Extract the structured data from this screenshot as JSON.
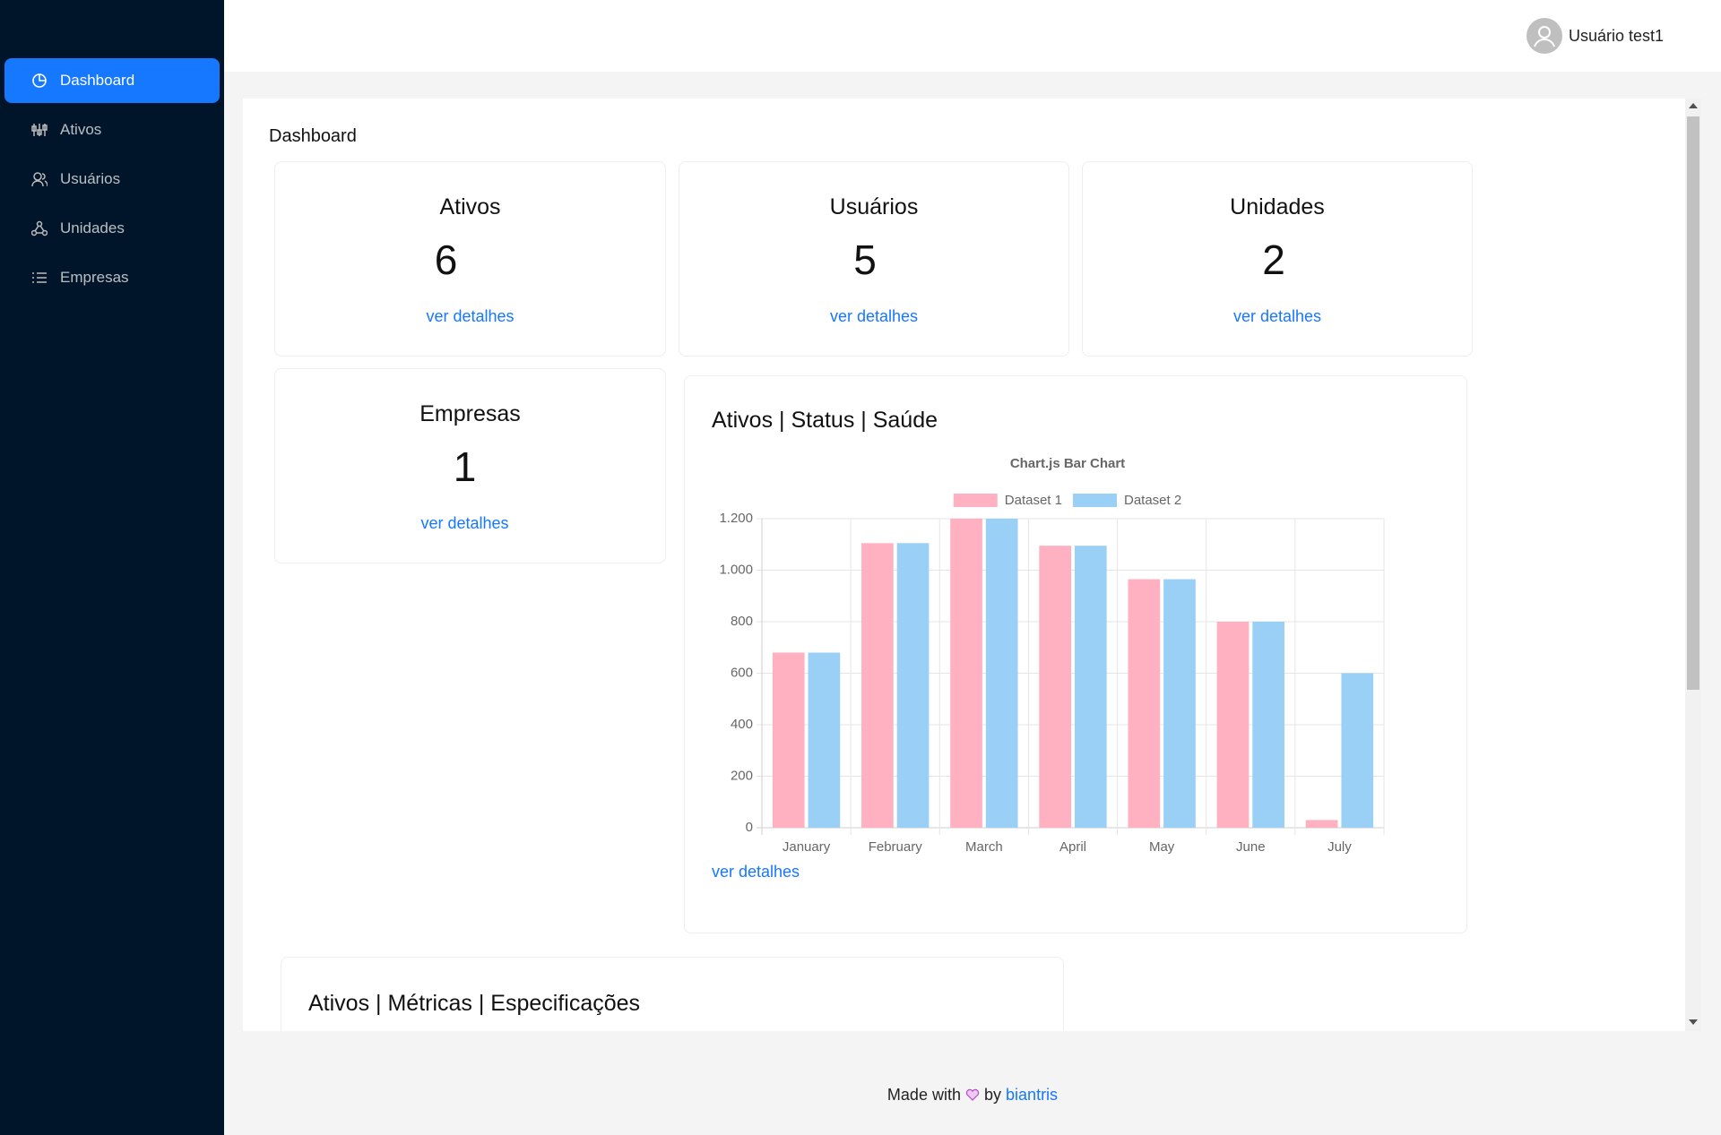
{
  "sidebar": {
    "items": [
      "Dashboard",
      "Ativos",
      "Usuários",
      "Unidades",
      "Empresas"
    ]
  },
  "header": {
    "user": "Usuário test1"
  },
  "page_title": "Dashboard",
  "cards": [
    {
      "title": "Ativos",
      "count": 6,
      "link": "ver detalhes"
    },
    {
      "title": "Usuários",
      "count": 5,
      "link": "ver detalhes"
    },
    {
      "title": "Unidades",
      "count": 2,
      "link": "ver detalhes"
    },
    {
      "title": "Empresas",
      "count": 1,
      "link": "ver detalhes"
    }
  ],
  "chart_card": {
    "title": "Ativos | Status | Saúde",
    "link": "ver detalhes"
  },
  "chart_data": {
    "type": "bar",
    "title": "Chart.js Bar Chart",
    "categories": [
      "January",
      "February",
      "March",
      "April",
      "May",
      "June",
      "July"
    ],
    "series": [
      {
        "name": "Dataset 1",
        "color": "#ffb1c1",
        "values": [
          680,
          1105,
          1200,
          1095,
          965,
          800,
          30
        ]
      },
      {
        "name": "Dataset 2",
        "color": "#9ad0f5",
        "values": [
          680,
          1105,
          1200,
          1095,
          965,
          800,
          600
        ]
      }
    ],
    "ylim": [
      0,
      1200
    ],
    "yticks": [
      0,
      200,
      400,
      600,
      800,
      {
        "value": 1000,
        "label": "1.000"
      },
      {
        "value": 1200,
        "label": "1.200"
      }
    ],
    "grid": true,
    "legend": "top"
  },
  "metrics_card": {
    "title": "Ativos | Métricas | Especificações"
  },
  "footer": {
    "text_before": "Made with",
    "text_by": "by",
    "author": "biantris"
  }
}
